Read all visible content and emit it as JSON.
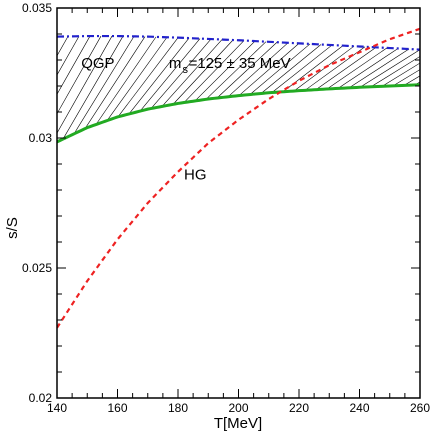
{
  "chart_data": {
    "type": "line",
    "title": "",
    "xlabel": "T[MeV]",
    "ylabel": "s/S",
    "xlim": [
      140,
      260
    ],
    "ylim": [
      0.02,
      0.035
    ],
    "x_ticks": [
      140,
      160,
      180,
      200,
      220,
      240,
      260
    ],
    "x_tick_labels": [
      "140",
      "160",
      "180",
      "200",
      "220",
      "240",
      "260"
    ],
    "y_ticks": [
      0.02,
      0.025,
      0.03,
      0.035
    ],
    "y_tick_labels": [
      "0.02",
      "0.025",
      "0.03",
      "0.035"
    ],
    "grid": false,
    "legend": "none",
    "series": [
      {
        "color": "#2222cc",
        "style": "dash-dot",
        "x": [
          140,
          150,
          160,
          170,
          180,
          190,
          200,
          210,
          220,
          230,
          240,
          250,
          260
        ],
        "y": [
          0.0339,
          0.03392,
          0.03392,
          0.0339,
          0.03386,
          0.03381,
          0.03376,
          0.0337,
          0.03364,
          0.03358,
          0.03352,
          0.03346,
          0.0334
        ]
      },
      {
        "color": "#22aa22",
        "style": "solid",
        "x": [
          140,
          150,
          160,
          170,
          180,
          190,
          200,
          210,
          220,
          230,
          240,
          250,
          260
        ],
        "y": [
          0.02985,
          0.0304,
          0.03081,
          0.03111,
          0.03133,
          0.0315,
          0.03163,
          0.03174,
          0.03182,
          0.03189,
          0.03195,
          0.032,
          0.03205
        ]
      },
      {
        "color": "#ee2222",
        "style": "dashed",
        "x": [
          140,
          150,
          160,
          170,
          180,
          190,
          200,
          210,
          220,
          230,
          240,
          250,
          260
        ],
        "y": [
          0.0227,
          0.0245,
          0.0261,
          0.0275,
          0.0287,
          0.0298,
          0.0307,
          0.0315,
          0.0322,
          0.0328,
          0.0333,
          0.0338,
          0.0342
        ]
      }
    ],
    "shaded_band": {
      "between": [
        "series.0",
        "series.1"
      ],
      "pattern": "diagonal-hatch",
      "x_range": [
        140,
        260
      ]
    },
    "annotations": {
      "qgp": {
        "text": "QGP",
        "x": 148,
        "y": 0.0327
      },
      "ms_prefix": {
        "text": "m",
        "x": 177,
        "y": 0.0327
      },
      "ms_sub": {
        "text": "s",
        "x": 181.5,
        "y": 0.0325
      },
      "ms_rest": {
        "text": "=125 ± 35 MeV",
        "x": 183.5,
        "y": 0.0327
      },
      "hg": {
        "text": "HG",
        "x": 182,
        "y": 0.0284
      }
    }
  }
}
